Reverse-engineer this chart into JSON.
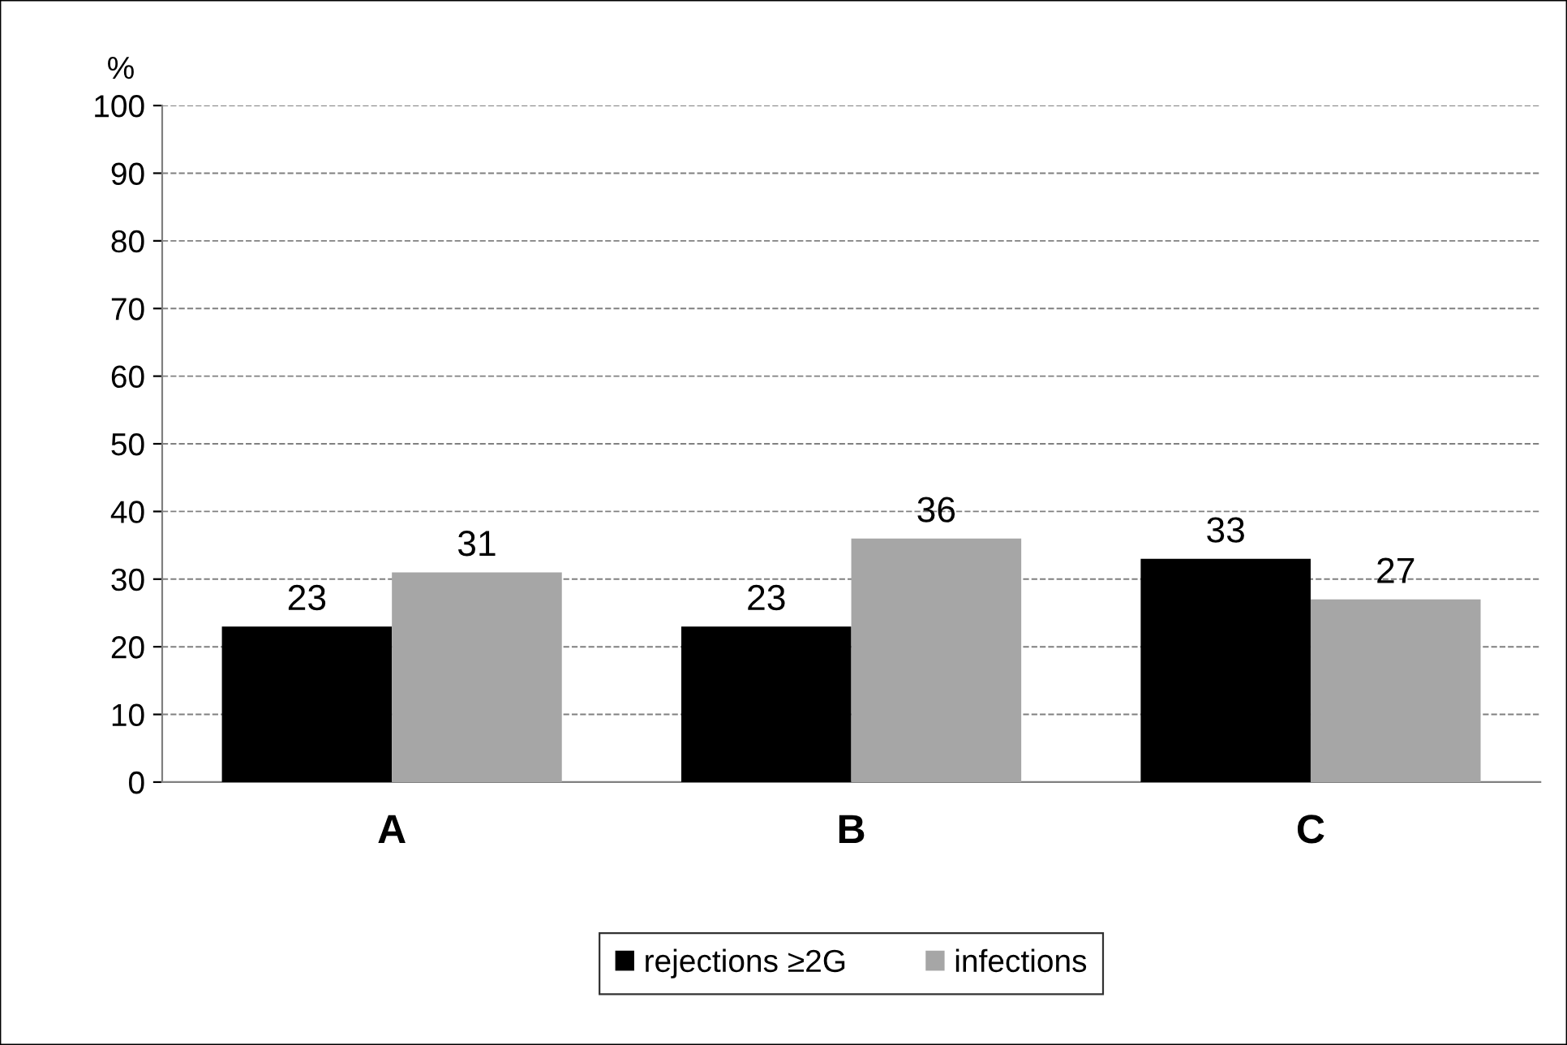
{
  "chart_data": {
    "type": "bar",
    "ylabel": "%",
    "categories": [
      "A",
      "B",
      "C"
    ],
    "series": [
      {
        "name": "rejections ≥2G",
        "color": "#000000",
        "values": [
          23,
          23,
          33
        ]
      },
      {
        "name": "infections",
        "color": "#a6a6a6",
        "values": [
          31,
          36,
          27
        ]
      }
    ],
    "ylim": [
      0,
      100
    ],
    "yticks": [
      0,
      10,
      20,
      30,
      40,
      50,
      60,
      70,
      80,
      90,
      100
    ],
    "grid": "y",
    "legend": "bottom",
    "data_labels": true
  }
}
